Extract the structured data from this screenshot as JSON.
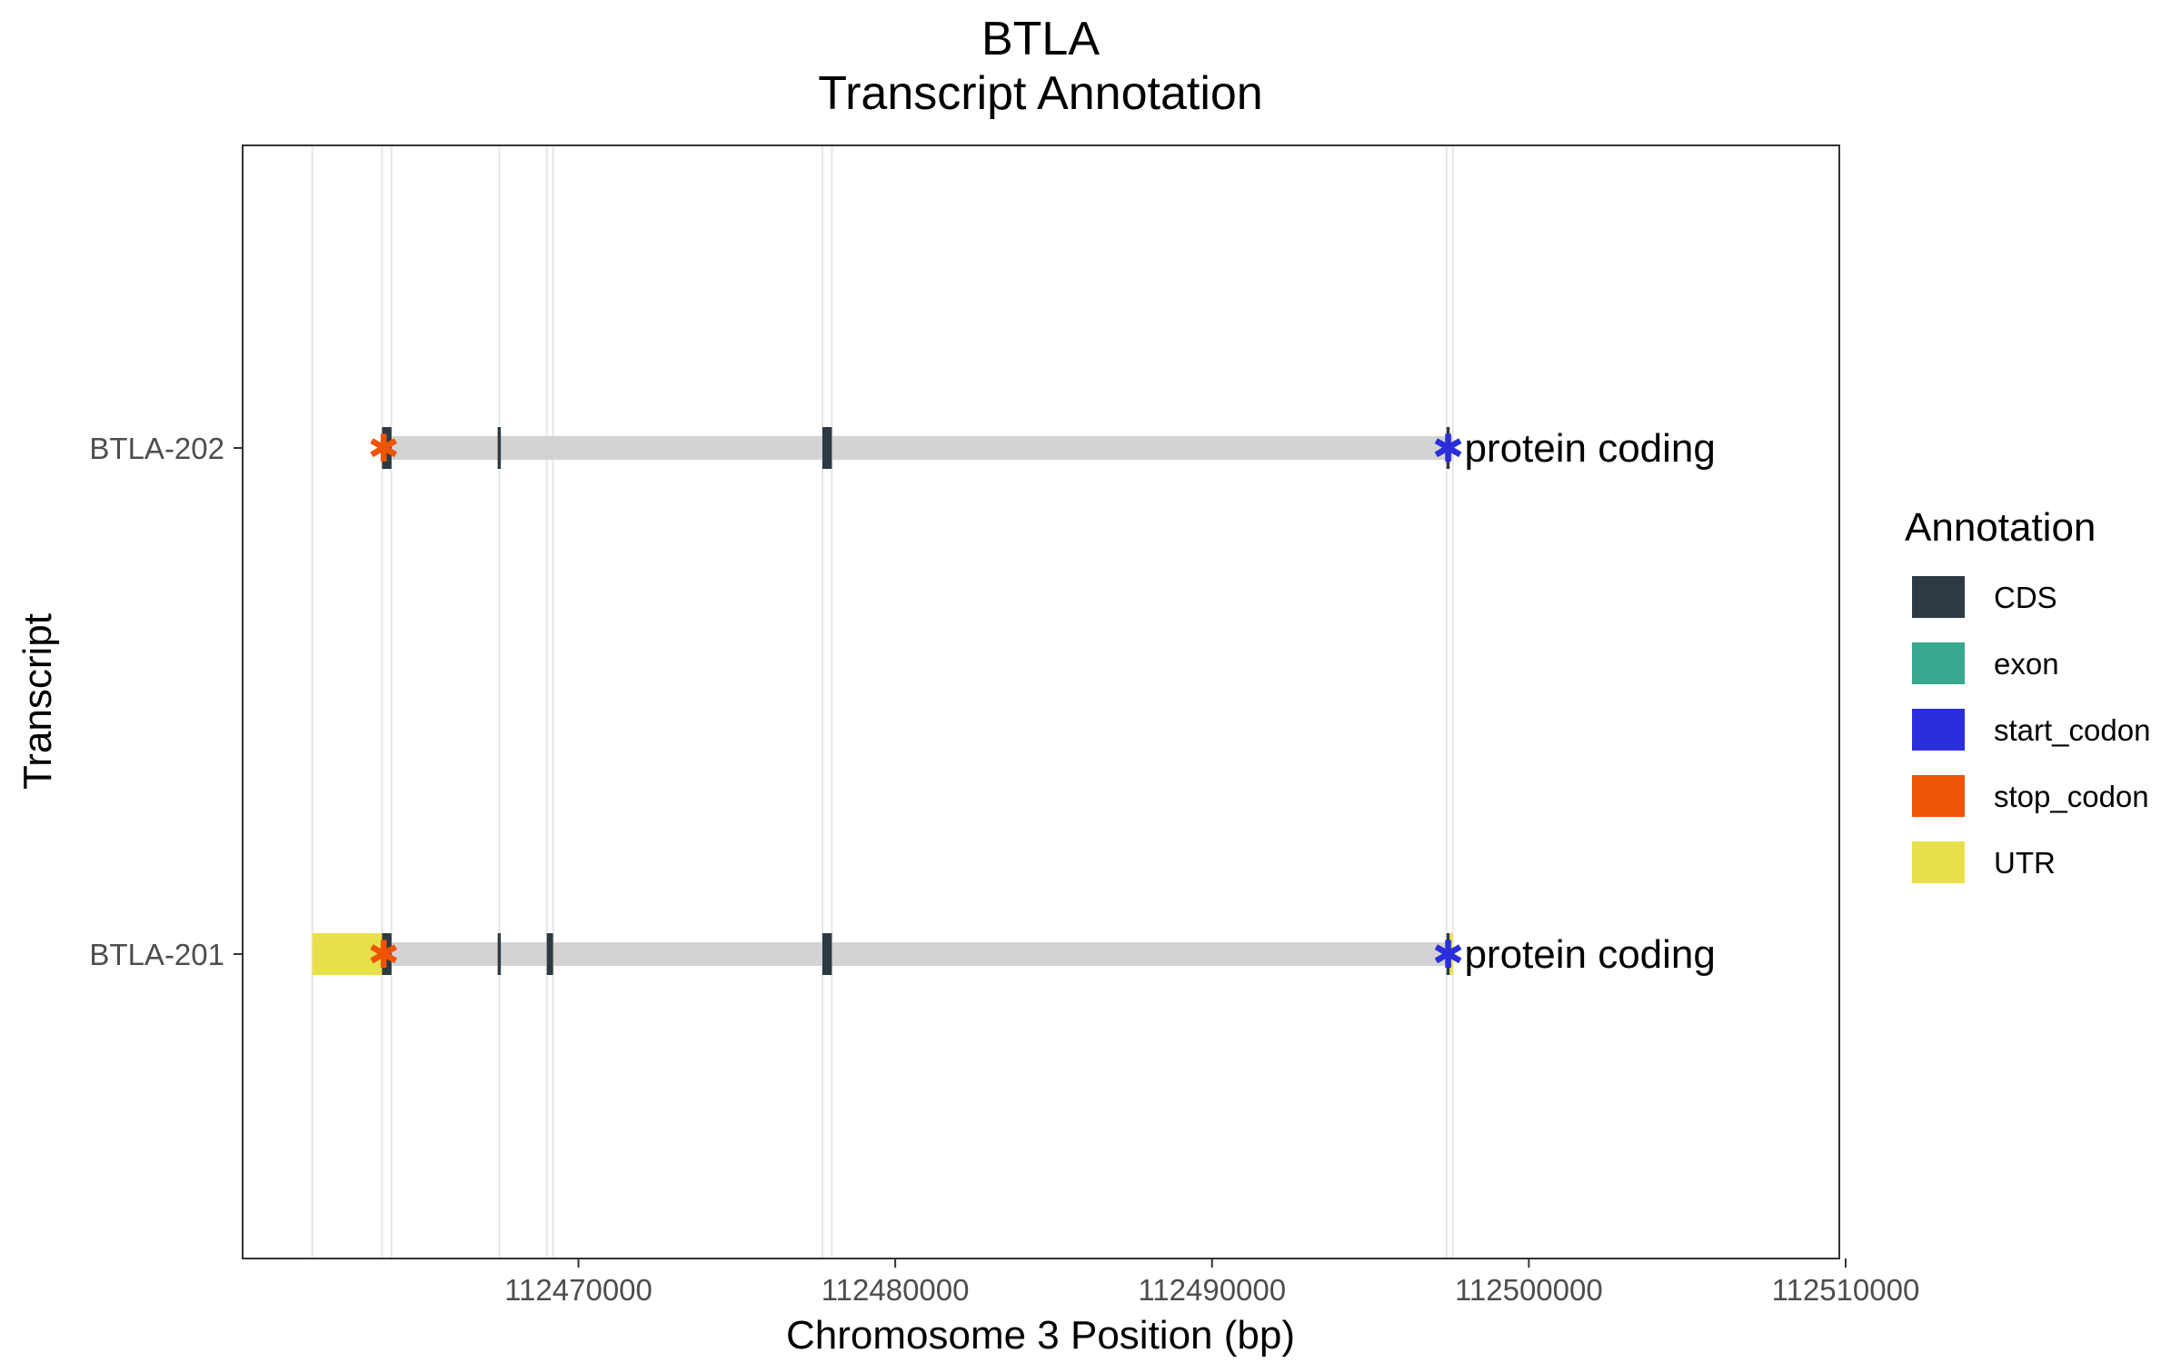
{
  "chart_data": {
    "type": "gene-structure",
    "title": "BTLA",
    "subtitle": "Transcript Annotation",
    "xlabel": "Chromosome 3 Position (bp)",
    "ylabel": "Transcript",
    "xlim": [
      112459400,
      112509800
    ],
    "x_ticks": [
      112470000,
      112480000,
      112490000,
      112500000,
      112510000
    ],
    "x_tick_labels": [
      "112470000",
      "112480000",
      "112490000",
      "112500000",
      "112510000"
    ],
    "grid": "vertical gridlines at feature boundaries",
    "legend": {
      "title": "Annotation",
      "position": "right",
      "items": [
        {
          "label": "CDS",
          "color": "#2e3a42"
        },
        {
          "label": "exon",
          "color": "#38a98f"
        },
        {
          "label": "start_codon",
          "color": "#2a2fdb"
        },
        {
          "label": "stop_codon",
          "color": "#ee5405"
        },
        {
          "label": "UTR",
          "color": "#e8e04a"
        }
      ]
    },
    "colors": {
      "intron": "#d3d3d3",
      "CDS": "#2e3a42",
      "exon": "#38a98f",
      "start_codon": "#2a2fdb",
      "stop_codon": "#ee5405",
      "UTR": "#e8e04a",
      "grid": "#e6e6e6",
      "panel_border": "#333333"
    },
    "gridlines": [
      112461600,
      112463800,
      112464100,
      112467500,
      112469000,
      112469200,
      112477700,
      112478000,
      112497400,
      112497600
    ],
    "transcripts": [
      {
        "name": "BTLA-202",
        "biotype": "protein coding",
        "start": 112463800,
        "end": 112497600,
        "features": [
          {
            "type": "CDS",
            "start": 112463800,
            "end": 112464100
          },
          {
            "type": "CDS",
            "start": 112467450,
            "end": 112467550
          },
          {
            "type": "CDS",
            "start": 112477700,
            "end": 112478000
          },
          {
            "type": "CDS",
            "start": 112497400,
            "end": 112497500
          }
        ],
        "stop_codon": 112463850,
        "start_codon": 112497450
      },
      {
        "name": "BTLA-201",
        "biotype": "protein coding",
        "start": 112461600,
        "end": 112497600,
        "features": [
          {
            "type": "UTR",
            "start": 112461600,
            "end": 112463800
          },
          {
            "type": "CDS",
            "start": 112463800,
            "end": 112464100
          },
          {
            "type": "CDS",
            "start": 112467450,
            "end": 112467550
          },
          {
            "type": "CDS",
            "start": 112469000,
            "end": 112469200
          },
          {
            "type": "CDS",
            "start": 112477700,
            "end": 112478000
          },
          {
            "type": "CDS",
            "start": 112497400,
            "end": 112497500
          },
          {
            "type": "UTR",
            "start": 112497500,
            "end": 112497600
          }
        ],
        "stop_codon": 112463850,
        "start_codon": 112497450
      }
    ]
  }
}
